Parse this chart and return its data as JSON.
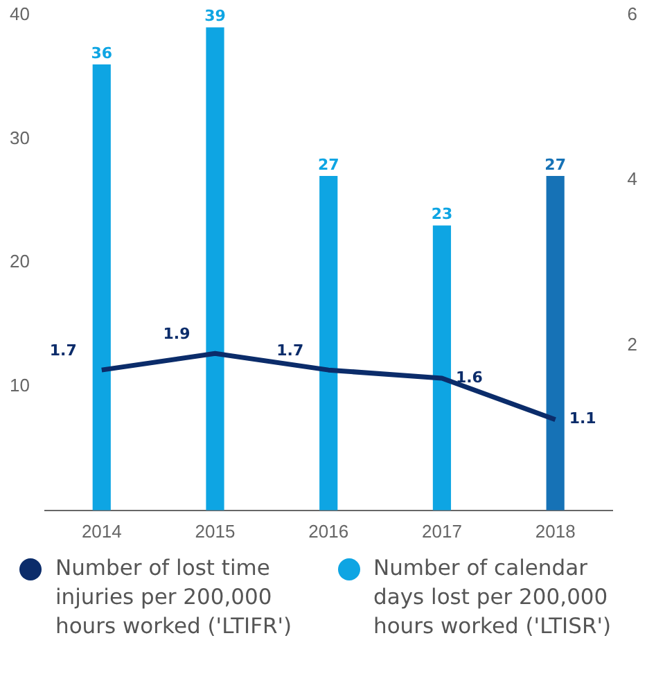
{
  "chart_data": {
    "type": "bar",
    "categories": [
      "2014",
      "2015",
      "2016",
      "2017",
      "2018"
    ],
    "series": [
      {
        "name": "Number of calendar days lost per 200,000 hours worked ('LTISR')",
        "color": "#0ea5e3",
        "colors": [
          "#0ea5e3",
          "#0ea5e3",
          "#0ea5e3",
          "#0ea5e3",
          "#1672b6"
        ],
        "values": [
          36,
          39,
          27,
          23,
          27
        ]
      },
      {
        "name": "Number of lost time injuries per 200,000 hours worked ('LTIFR')",
        "type": "line",
        "axis": "y2",
        "color": "#0b2c6a",
        "values": [
          1.7,
          1.9,
          1.7,
          1.6,
          1.1
        ]
      }
    ],
    "ylim": [
      0,
      40
    ],
    "yticks": [
      10,
      20,
      30,
      40
    ],
    "y2lim": [
      0,
      6
    ],
    "y2ticks": [
      2,
      4,
      6
    ],
    "data_labels": true,
    "grid": false,
    "legend": "bottom",
    "marker": "none",
    "line_style": "solid"
  }
}
